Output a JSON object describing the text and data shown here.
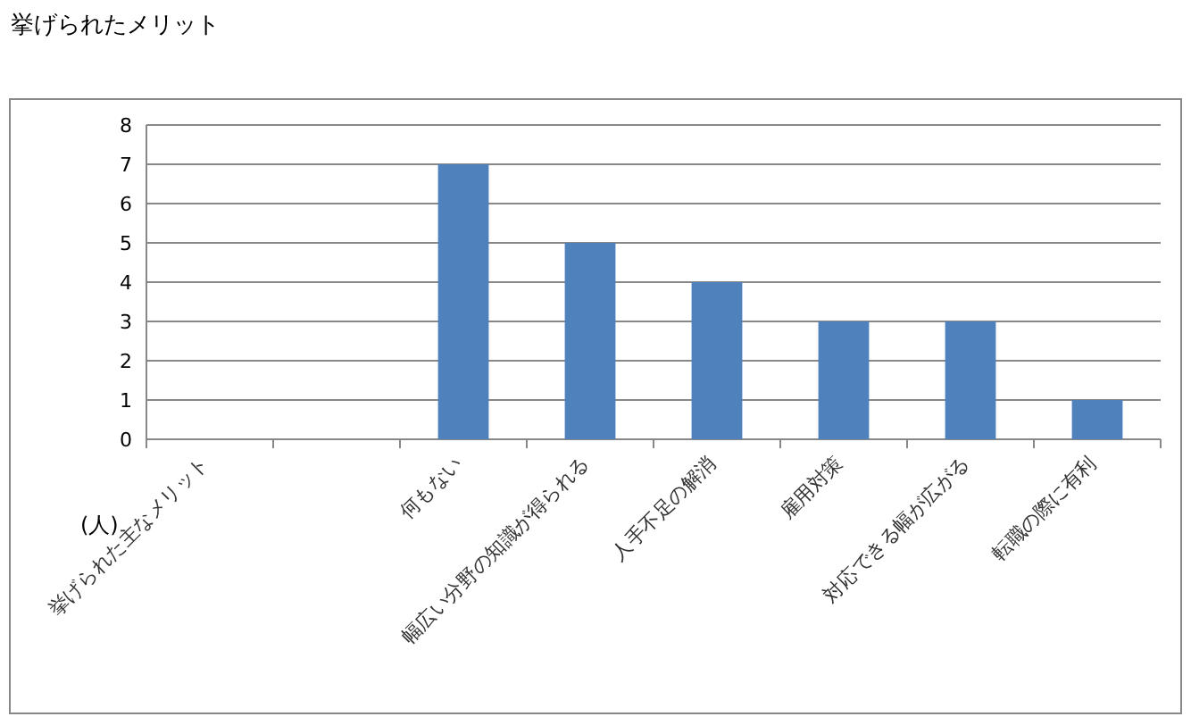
{
  "chart_data": {
    "type": "bar",
    "title": "挙げられたメリット",
    "ylabel": "(人)",
    "categories": [
      "挙げられた主なメリット",
      null,
      "何もない",
      "幅広い分野の知識が得られる",
      "人手不足の解消",
      "雇用対策",
      "対応できる幅が広がる",
      "転職の際に有利"
    ],
    "values": [
      null,
      null,
      7,
      5,
      4,
      3,
      3,
      1
    ],
    "color": "#4f81bd",
    "ylim": [
      0,
      8
    ],
    "yticks": [
      0,
      1,
      2,
      3,
      4,
      5,
      6,
      7,
      8
    ],
    "grid": "y"
  }
}
